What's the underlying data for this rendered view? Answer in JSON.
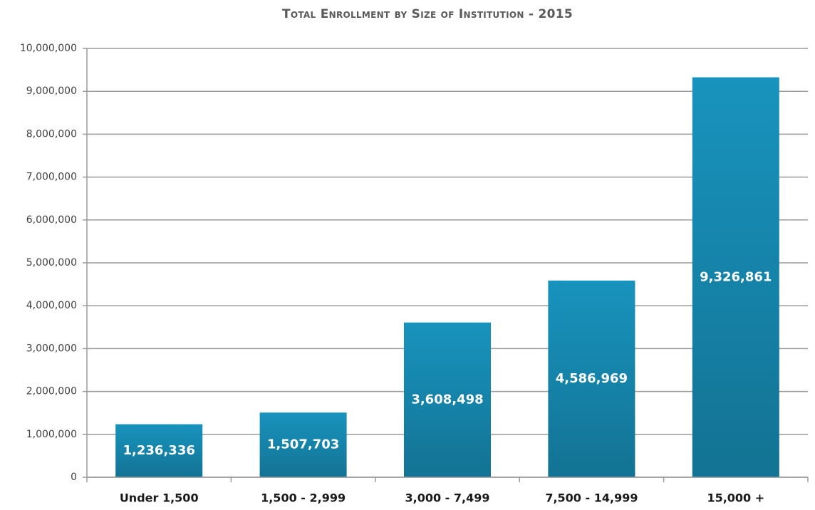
{
  "chart_data": {
    "type": "bar",
    "title": "Total Enrollment by Size of Institution - 2015",
    "categories": [
      "Under 1,500",
      "1,500 - 2,999",
      "3,000 - 7,499",
      "7,500 - 14,999",
      "15,000 +"
    ],
    "values": [
      1236336,
      1507703,
      3608498,
      4586969,
      9326861
    ],
    "value_labels": [
      "1,236,336",
      "1,507,703",
      "3,608,498",
      "4,586,969",
      "9,326,861"
    ],
    "color": "#1893bd",
    "ylim": [
      0,
      10000000
    ],
    "yticks": [
      0,
      {
        "value": 1000000,
        "label": "1,000,000"
      },
      {
        "value": 2000000,
        "label": "2,000,000"
      },
      {
        "value": 3000000,
        "label": "3,000,000"
      },
      {
        "value": 4000000,
        "label": "4,000,000"
      },
      {
        "value": 5000000,
        "label": "5,000,000"
      },
      {
        "value": 6000000,
        "label": "6,000,000"
      },
      {
        "value": 7000000,
        "label": "7,000,000"
      },
      {
        "value": 8000000,
        "label": "8,000,000"
      },
      {
        "value": 9000000,
        "label": "9,000,000"
      },
      {
        "value": 10000000,
        "label": "10,000,000"
      }
    ],
    "grid": true
  }
}
